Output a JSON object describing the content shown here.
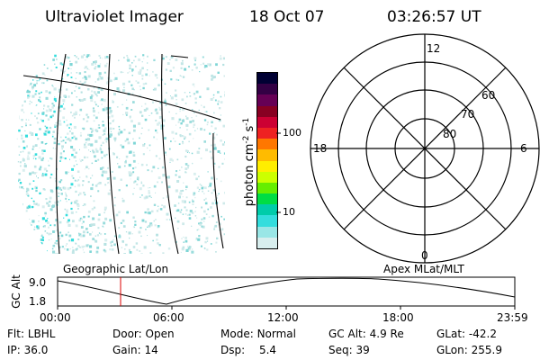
{
  "header": {
    "instrument": "Ultraviolet Imager",
    "date": "18 Oct 07",
    "time": "03:26:57 UT"
  },
  "colorbar": {
    "label_main": "photon cm",
    "label_sup1": "-2",
    "label_mid": "s",
    "label_sup2": "-1",
    "ticks": [
      "100",
      "10"
    ],
    "colors": [
      "#000033",
      "#330044",
      "#660055",
      "#880022",
      "#cc0033",
      "#ee2222",
      "#ff7700",
      "#ffbb00",
      "#ffee00",
      "#ccff00",
      "#66ee00",
      "#00dd44",
      "#00ccaa",
      "#33dddd",
      "#99e6e6",
      "#d8eeee"
    ]
  },
  "polar_plot": {
    "hour_labels": {
      "top": "12",
      "left": "18",
      "right": "6",
      "bottom": "0"
    },
    "lat_labels": [
      "60",
      "70",
      "80"
    ]
  },
  "captions": {
    "left": "Geographic Lat/Lon",
    "right": "Apex MLat/MLT"
  },
  "altitude_plot": {
    "axis_label": "GC Alt",
    "y_ticks": [
      "9.0",
      "1.8"
    ],
    "x_ticks": [
      "00:00",
      "06:00",
      "12:00",
      "18:00",
      "23:59"
    ],
    "marker_color": "#dd0000"
  },
  "info": {
    "flt_label": "Flt:",
    "flt_value": "LBHL",
    "door_label": "Door:",
    "door_value": "Open",
    "mode_label": "Mode:",
    "mode_value": "Normal",
    "gcalt_label": "GC Alt:",
    "gcalt_value": "4.9 Re",
    "glat_label": "GLat:",
    "glat_value": "-42.2",
    "ip_label": "IP:",
    "ip_value": "36.0",
    "gain_label": "Gain:",
    "gain_value": "14",
    "dsp_label": "Dsp:",
    "dsp_value": "5.4",
    "seq_label": "Seq:",
    "seq_value": "39",
    "glon_label": "GLon:",
    "glon_value": "255.9"
  }
}
